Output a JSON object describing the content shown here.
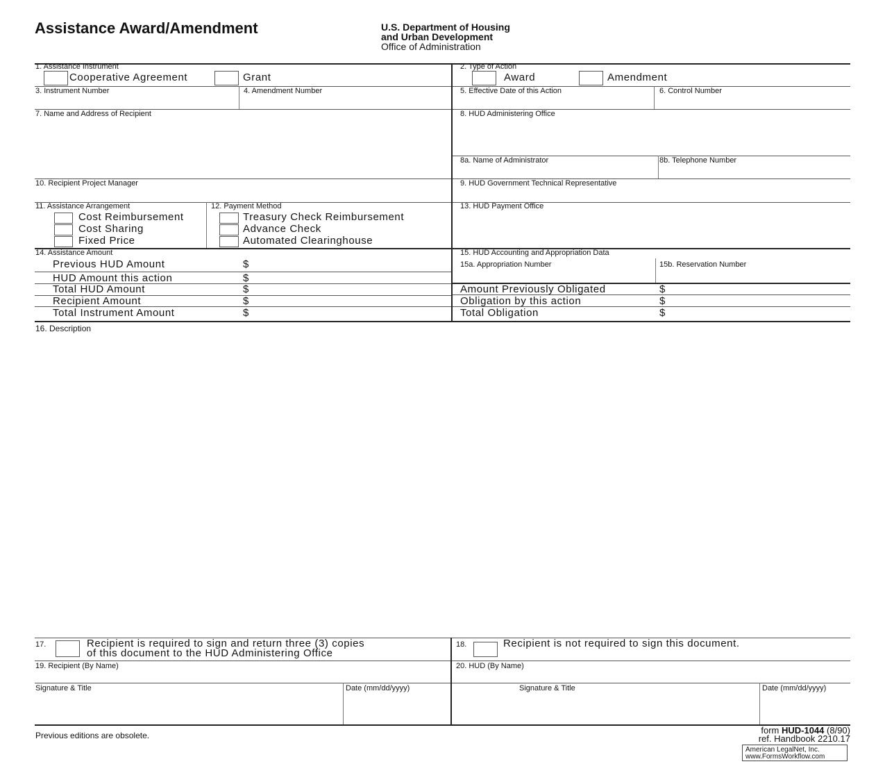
{
  "header": {
    "title": "Assistance Award/Amendment",
    "agency_line1": "U.S. Department of Housing",
    "agency_line2": "and Urban Development",
    "office": "Office of Administration"
  },
  "fields": {
    "f1": "1.  Assistance Instrument",
    "f1_opt1": "Cooperative  Agreement",
    "f1_opt2": "Grant",
    "f2": "2.  Type of Action",
    "f2_opt1": "Award",
    "f2_opt2": "Amendment",
    "f3": "3.  Instrument Number",
    "f4": "4.  Amendment Number",
    "f5": "5.  Effective Date of this Action",
    "f6": "6.  Control Number",
    "f7": "7.  Name and Address of Recipient",
    "f8": "8.  HUD Administering Office",
    "f8a": "8a.  Name of Administrator",
    "f8b": "8b.  Telephone Number",
    "f10": "10.  Recipient Project Manager",
    "f9": "9.  HUD Government Technical Representative",
    "f11": "11.  Assistance Arrangement",
    "f11_opts": [
      "Cost Reimbursement",
      "Cost Sharing",
      "Fixed Price"
    ],
    "f12": "12.  Payment Method",
    "f12_opts": [
      "Treasury Check Reimbursement",
      "Advance Check",
      "Automated Clearinghouse"
    ],
    "f13": "13.  HUD Payment Office",
    "f14": "14.  Assistance Amount",
    "f14_rows": [
      "Previous HUD Amount",
      "HUD Amount this action",
      "Total HUD Amount",
      "Recipient Amount",
      "Total Instrument Amount"
    ],
    "f15": "15.  HUD Accounting and Appropriation Data",
    "f15a": "15a.  Appropriation Number",
    "f15b": "15b.  Reservation Number",
    "f15_rows": [
      "Amount Previously Obligated",
      "Obligation by this action",
      "Total Obligation"
    ],
    "dollar": "$",
    "f16": "16.  Description",
    "f17_num": "17.",
    "f17_line1": "Recipient is required to sign and return three (3) copies",
    "f17_line2": "of this document to the HUD Administering Office",
    "f18_num": "18.",
    "f18_text": "Recipient is not required to sign this document.",
    "f19": "19.  Recipient (By Name)",
    "f20": "20.  HUD (By Name)",
    "sig_title": "Signature & Title",
    "date": "Date (mm/dd/yyyy)"
  },
  "footer": {
    "obsolete": "Previous editions are obsolete.",
    "form_prefix": "form",
    "form_number": "HUD-1044",
    "form_date": "(8/90)",
    "handbook": "ref. Handbook 2210.17",
    "publisher_line1": "American LegalNet, Inc.",
    "publisher_line2": "www.FormsWorkflow.com"
  }
}
